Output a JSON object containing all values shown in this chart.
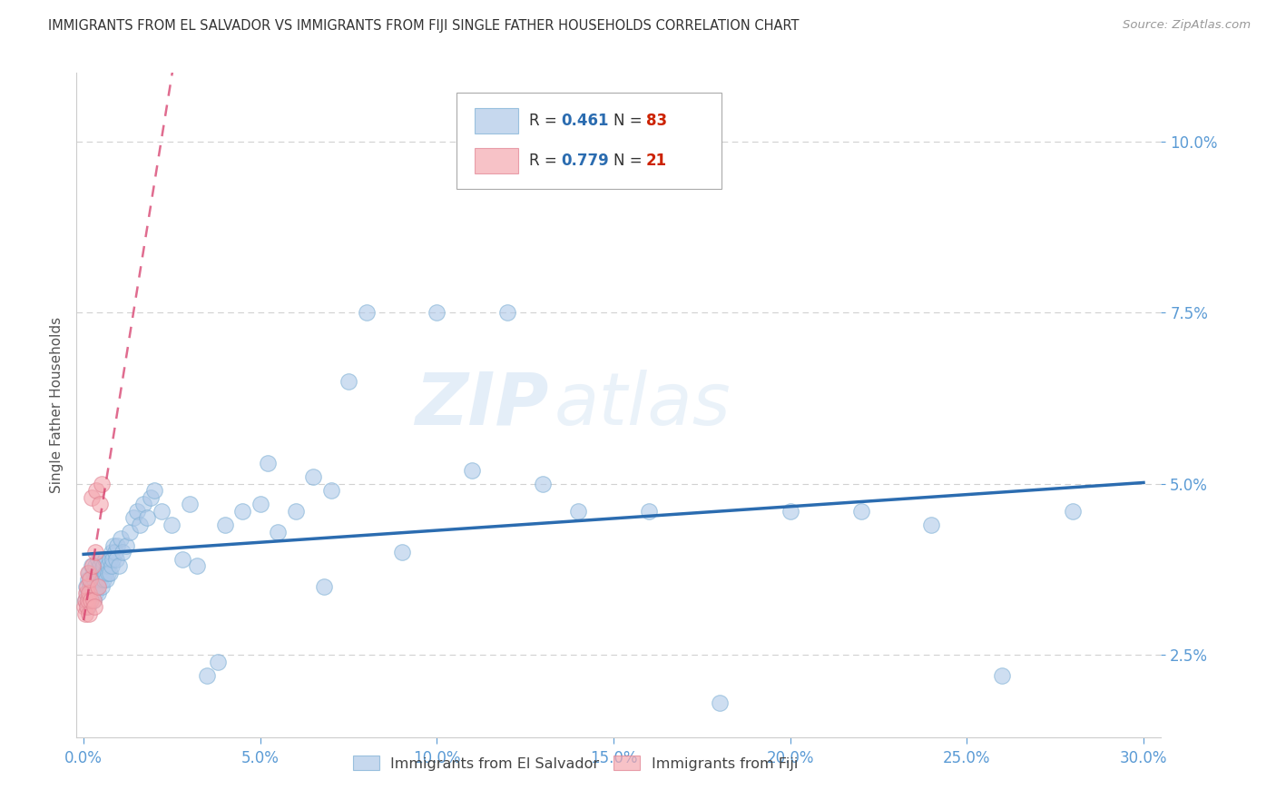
{
  "title": "IMMIGRANTS FROM EL SALVADOR VS IMMIGRANTS FROM FIJI SINGLE FATHER HOUSEHOLDS CORRELATION CHART",
  "source": "Source: ZipAtlas.com",
  "tick_color": "#5b9bd5",
  "ylabel": "Single Father Households",
  "x_tick_values": [
    0.0,
    5.0,
    10.0,
    15.0,
    20.0,
    25.0,
    30.0
  ],
  "x_tick_labels": [
    "0.0%",
    "5.0%",
    "10.0%",
    "15.0%",
    "20.0%",
    "25.0%",
    "30.0%"
  ],
  "y_tick_values": [
    2.5,
    5.0,
    7.5,
    10.0
  ],
  "y_tick_labels": [
    "2.5%",
    "5.0%",
    "7.5%",
    "10.0%"
  ],
  "xlim": [
    -0.2,
    30.5
  ],
  "ylim": [
    1.3,
    11.0
  ],
  "background_color": "#ffffff",
  "grid_color": "#cccccc",
  "blue_scatter_color": "#aec8e8",
  "pink_scatter_color": "#f4a8b0",
  "blue_line_color": "#2b6cb0",
  "pink_line_color": "#d63b6a",
  "R_blue": "0.461",
  "N_blue": "83",
  "R_pink": "0.779",
  "N_pink": "21",
  "R_value_color": "#2b6cb0",
  "N_value_color": "#cc2200",
  "watermark_zip": "ZIP",
  "watermark_atlas": "atlas",
  "legend_label_blue": "Immigrants from El Salvador",
  "legend_label_pink": "Immigrants from Fiji",
  "blue_x": [
    0.05,
    0.08,
    0.1,
    0.12,
    0.13,
    0.15,
    0.17,
    0.18,
    0.2,
    0.22,
    0.25,
    0.27,
    0.28,
    0.3,
    0.32,
    0.33,
    0.35,
    0.37,
    0.4,
    0.42,
    0.45,
    0.47,
    0.5,
    0.52,
    0.55,
    0.57,
    0.6,
    0.62,
    0.65,
    0.68,
    0.7,
    0.73,
    0.75,
    0.78,
    0.8,
    0.83,
    0.85,
    0.9,
    0.93,
    0.95,
    1.0,
    1.05,
    1.1,
    1.2,
    1.3,
    1.4,
    1.5,
    1.6,
    1.7,
    1.8,
    1.9,
    2.0,
    2.2,
    2.5,
    2.8,
    3.0,
    3.2,
    3.5,
    4.0,
    4.5,
    5.0,
    5.5,
    6.0,
    6.5,
    7.0,
    7.5,
    8.0,
    9.0,
    10.0,
    11.0,
    12.0,
    13.0,
    14.0,
    16.0,
    18.0,
    20.0,
    22.0,
    24.0,
    26.0,
    28.0,
    3.8,
    5.2,
    6.8
  ],
  "blue_y": [
    3.3,
    3.5,
    3.4,
    3.6,
    3.2,
    3.7,
    3.3,
    3.5,
    3.4,
    3.8,
    3.5,
    3.7,
    3.3,
    3.6,
    3.4,
    3.8,
    3.5,
    3.7,
    3.4,
    3.9,
    3.6,
    3.8,
    3.5,
    3.9,
    3.6,
    3.8,
    3.7,
    3.9,
    3.6,
    3.8,
    3.7,
    3.9,
    3.7,
    4.0,
    3.8,
    3.9,
    4.1,
    4.0,
    3.9,
    4.1,
    3.8,
    4.2,
    4.0,
    4.1,
    4.3,
    4.5,
    4.6,
    4.4,
    4.7,
    4.5,
    4.8,
    4.9,
    4.6,
    4.4,
    3.9,
    4.7,
    3.8,
    2.2,
    4.4,
    4.6,
    4.7,
    4.3,
    4.6,
    5.1,
    4.9,
    6.5,
    7.5,
    4.0,
    7.5,
    5.2,
    7.5,
    5.0,
    4.6,
    4.6,
    1.8,
    4.6,
    4.6,
    4.4,
    2.2,
    4.6,
    2.4,
    5.3,
    3.5
  ],
  "pink_x": [
    0.03,
    0.05,
    0.06,
    0.08,
    0.1,
    0.11,
    0.12,
    0.13,
    0.15,
    0.16,
    0.18,
    0.2,
    0.22,
    0.25,
    0.28,
    0.3,
    0.33,
    0.35,
    0.4,
    0.45,
    0.5
  ],
  "pink_y": [
    3.2,
    3.3,
    3.1,
    3.4,
    3.5,
    3.2,
    3.3,
    3.7,
    3.4,
    3.1,
    3.6,
    3.3,
    4.8,
    3.8,
    3.3,
    3.2,
    4.0,
    4.9,
    3.5,
    4.7,
    5.0
  ],
  "pink_line_x_start": 0.0,
  "pink_line_x_end": 1.8,
  "pink_dashed_x_start": 0.0,
  "pink_dashed_x_end": 8.0
}
